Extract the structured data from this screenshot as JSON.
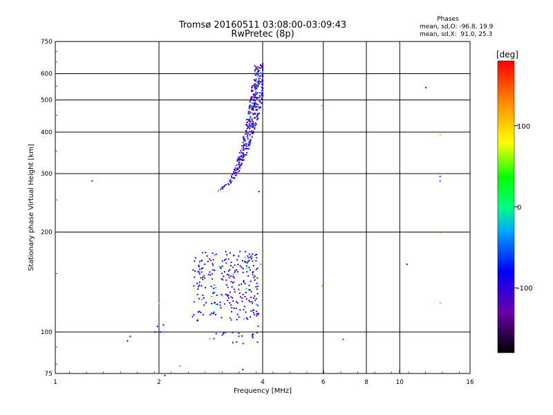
{
  "chart_data": {
    "type": "scatter",
    "title_line1": "Tromsø 20160511 03:08:00-03:09:43",
    "title_line2": "RwPretec (8p)",
    "stats": {
      "heading": "Phases",
      "line_o": "mean, sd,O: -96.8, 19.9",
      "line_x": "mean, sd,X:  91.0, 25.3"
    },
    "xlabel": "Frequency [MHz]",
    "ylabel": "Stationary phase Virtual Height [km]",
    "x_scale": "log2",
    "y_scale": "log",
    "xlim": [
      1,
      16
    ],
    "ylim": [
      75,
      750
    ],
    "x_ticks": [
      1,
      2,
      4,
      6,
      8,
      10,
      16
    ],
    "x_tick_labels": [
      "1",
      "2",
      "4",
      "6",
      "8",
      "10",
      "16"
    ],
    "y_ticks": [
      75,
      100,
      200,
      300,
      400,
      500,
      600,
      750
    ],
    "y_tick_labels": [
      "75",
      "100",
      "200",
      "300",
      "400",
      "500",
      "600",
      "750"
    ],
    "grid": true,
    "colorbar": {
      "label": "[deg]",
      "range": [
        -180,
        180
      ],
      "ticks": [
        100,
        0,
        -100
      ],
      "tick_labels": [
        "100",
        "0",
        "-100"
      ]
    },
    "clusters": [
      {
        "f_min": 2.85,
        "f_max": 4.0,
        "h_min": 265,
        "h_max": 645,
        "phase": -105,
        "count": 420,
        "shape": "f-trace"
      },
      {
        "f_min": 2.5,
        "f_max": 3.9,
        "h_min": 108,
        "h_max": 175,
        "phase": -95,
        "count": 260,
        "shape": "e-cloud"
      },
      {
        "f_min": 2.8,
        "f_max": 3.9,
        "h_min": 92,
        "h_max": 100,
        "phase": -110,
        "count": 20,
        "shape": "low"
      }
    ],
    "isolated_points": [
      {
        "f": 1.28,
        "h": 285,
        "phase": -70
      },
      {
        "f": 1.65,
        "h": 97,
        "phase": -100
      },
      {
        "f": 1.62,
        "h": 94,
        "phase": -100
      },
      {
        "f": 1.95,
        "h": 100,
        "phase": -100
      },
      {
        "f": 1.98,
        "h": 104,
        "phase": -100
      },
      {
        "f": 2.02,
        "h": 100,
        "phase": -90
      },
      {
        "f": 2.06,
        "h": 105,
        "phase": -90
      },
      {
        "f": 2.08,
        "h": 74,
        "phase": -100
      },
      {
        "f": 2.0,
        "h": 122,
        "phase": 100
      },
      {
        "f": 2.3,
        "h": 79,
        "phase": 130
      },
      {
        "f": 3.0,
        "h": 76,
        "phase": 100
      },
      {
        "f": 3.5,
        "h": 77,
        "phase": -80
      },
      {
        "f": 3.9,
        "h": 265,
        "phase": -110
      },
      {
        "f": 3.95,
        "h": 160,
        "phase": 30
      },
      {
        "f": 3.88,
        "h": 104,
        "phase": -60
      },
      {
        "f": 5.95,
        "h": 480,
        "phase": 110
      },
      {
        "f": 5.95,
        "h": 138,
        "phase": 120
      },
      {
        "f": 6.85,
        "h": 95,
        "phase": -60
      },
      {
        "f": 10.5,
        "h": 160,
        "phase": -90
      },
      {
        "f": 11.9,
        "h": 545,
        "phase": -90
      },
      {
        "f": 13.1,
        "h": 393,
        "phase": 110
      },
      {
        "f": 13.1,
        "h": 294,
        "phase": -60
      },
      {
        "f": 13.1,
        "h": 285,
        "phase": -50
      },
      {
        "f": 13.1,
        "h": 199,
        "phase": 110
      },
      {
        "f": 13.1,
        "h": 122,
        "phase": 120
      }
    ]
  }
}
